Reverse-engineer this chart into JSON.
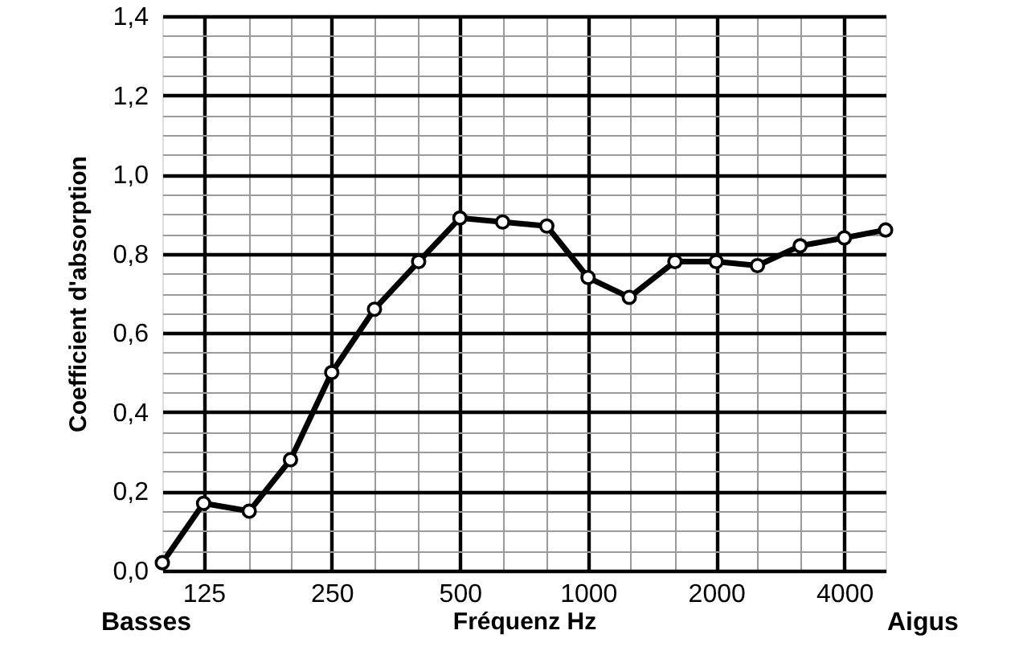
{
  "chart_data": {
    "type": "line",
    "xlabel": "Fréquenz Hz",
    "ylabel": "Coefficient d'absorption",
    "annotations": [
      "Basses",
      "Aigus"
    ],
    "x": [
      100,
      125,
      160,
      200,
      250,
      315,
      400,
      500,
      630,
      800,
      1000,
      1250,
      1600,
      2000,
      2500,
      3150,
      4000,
      5000
    ],
    "series": [
      {
        "color": "#000000",
        "values": [
          0.02,
          0.17,
          0.15,
          0.28,
          0.5,
          0.66,
          0.78,
          0.89,
          0.88,
          0.87,
          0.74,
          0.69,
          0.78,
          0.78,
          0.77,
          0.82,
          0.84,
          0.86
        ]
      }
    ],
    "log": "x",
    "xlim": [
      100,
      5000
    ],
    "ylim": [
      0,
      1.4
    ],
    "xticks": [
      125,
      {
        "value": 160,
        "label": null
      },
      {
        "value": 200,
        "label": null
      },
      250,
      {
        "value": 315,
        "label": null
      },
      {
        "value": 400,
        "label": null
      },
      500,
      {
        "value": 630,
        "label": null
      },
      {
        "value": 800,
        "label": null
      },
      1000,
      {
        "value": 1250,
        "label": null
      },
      {
        "value": 1600,
        "label": null
      },
      2000,
      {
        "value": 2500,
        "label": null
      },
      {
        "value": 3150,
        "label": null
      },
      4000
    ],
    "yticks": [
      {
        "value": 0,
        "label": "0,0"
      },
      {
        "value": 0.05,
        "label": null
      },
      {
        "value": 0.1,
        "label": null
      },
      {
        "value": 0.15,
        "label": null
      },
      {
        "value": 0.2,
        "label": "0,2"
      },
      {
        "value": 0.25,
        "label": null
      },
      {
        "value": 0.3,
        "label": null
      },
      {
        "value": 0.35,
        "label": null
      },
      {
        "value": 0.4,
        "label": "0,4"
      },
      {
        "value": 0.45,
        "label": null
      },
      {
        "value": 0.5,
        "label": null
      },
      {
        "value": 0.55,
        "label": null
      },
      {
        "value": 0.6,
        "label": "0,6"
      },
      {
        "value": 0.65,
        "label": null
      },
      {
        "value": 0.7,
        "label": null
      },
      {
        "value": 0.75,
        "label": null
      },
      {
        "value": 0.8,
        "label": "0,8"
      },
      {
        "value": 0.85,
        "label": null
      },
      {
        "value": 0.9,
        "label": null
      },
      {
        "value": 0.95,
        "label": null
      },
      {
        "value": 1.0,
        "label": "1,0"
      },
      {
        "value": 1.05,
        "label": null
      },
      {
        "value": 1.1,
        "label": null
      },
      {
        "value": 1.15,
        "label": null
      },
      {
        "value": 1.2,
        "label": "1,2"
      },
      {
        "value": 1.25,
        "label": null
      },
      {
        "value": 1.3,
        "label": null
      },
      {
        "value": 1.35,
        "label": null
      },
      {
        "value": 1.4,
        "label": "1,4"
      }
    ],
    "grid": true,
    "marker": "circle",
    "line_style": "solid"
  }
}
